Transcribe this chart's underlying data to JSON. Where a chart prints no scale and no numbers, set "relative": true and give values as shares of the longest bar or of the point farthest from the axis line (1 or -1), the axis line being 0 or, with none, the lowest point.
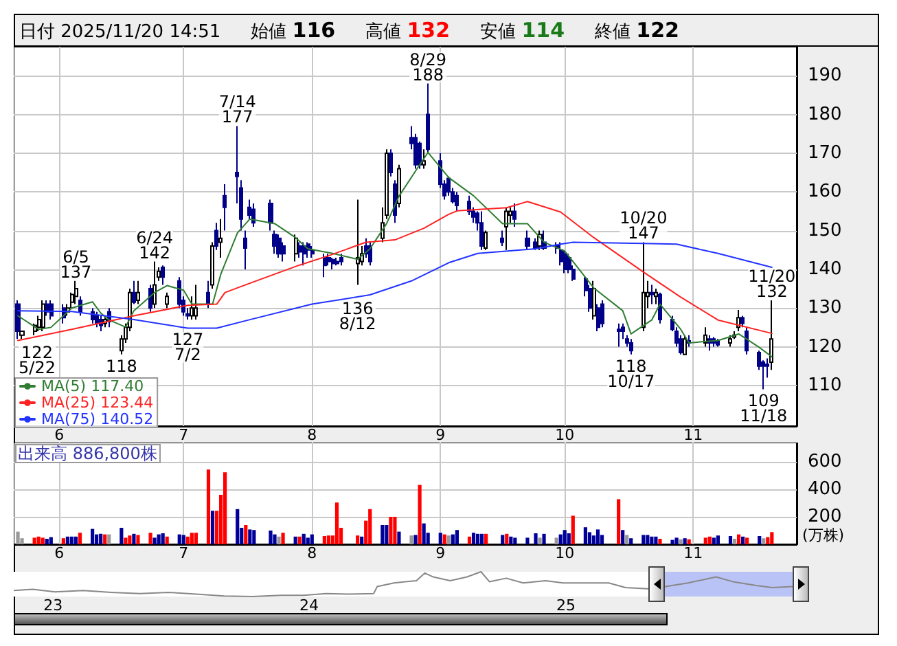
{
  "chart_data": [
    {
      "type": "candlestick",
      "title": "日付 2025/11/20 14:51",
      "colors": [
        "#000088",
        "#ffffff",
        "#ffffff",
        "#ffffff",
        "#ffffff",
        "#000088",
        "#000088",
        "#000088",
        "#ffffff",
        "#ffffff",
        "#ffffff",
        "#000088",
        "#000088",
        "#000088",
        "#000088",
        "#ffffff",
        "#000088",
        "#ffffff",
        "#ffffff",
        "#ffffff",
        "#000088",
        "#ffffff",
        "#000088",
        "#ffffff",
        "#ffffff",
        "#000088",
        "#ffffff",
        "#000088",
        "#000088",
        "#000088",
        "#ffffff",
        "#ffffff",
        "#000088",
        "#ffffff",
        "#000088",
        "#ffffff",
        "#000088",
        "#000088",
        "#000088",
        "#000088",
        "#000088",
        "#000088",
        "#000088",
        "#000088",
        "#000088",
        "#000088",
        "#ffffff",
        "#000088",
        "#000088",
        "#000088",
        "#000088",
        "#000088",
        "#000088",
        "#000088",
        "#000088",
        "#000088",
        "#ffffff",
        "#ffffff",
        "#000088",
        "#000088",
        "#ffffff",
        "#ffffff",
        "#000088",
        "#000088",
        "#ffffff",
        "#000088",
        "#000088",
        "#000088",
        "#ffffff",
        "#000088",
        "#000088",
        "#000088",
        "#000088",
        "#000088",
        "#000088",
        "#000088",
        "#000088",
        "#000088",
        "#000088",
        "#ffffff",
        "#000088",
        "#ffffff",
        "#ffffff",
        "#000088",
        "#000088",
        "#000088",
        "#ffffff",
        "#000088",
        "#000088",
        "#000088",
        "#000088",
        "#000088",
        "#000088",
        "#000088",
        "#000088",
        "#ffffff",
        "#000088",
        "#000088",
        "#000088",
        "#000088",
        "#000088",
        "#000088",
        "#ffffff",
        "#ffffff",
        "#000088",
        "#ffffff",
        "#000088",
        "#000088",
        "#000088",
        "#000088",
        "#ffffff",
        "#000088",
        "#ffffff",
        "#000088",
        "#000088",
        "#000088",
        "#ffffff",
        "#ffffff",
        "#ffffff",
        "#000088",
        "#000088",
        "#000088",
        "#000088",
        "#000088",
        "#ffffff"
      ],
      "annotations": [
        "始値 116",
        "高値 132",
        "安値 114",
        "終値 122",
        {
          "text": "122\n5/22",
          "x": "2025-05-22",
          "y": 122
        },
        {
          "text": "6/5\n137",
          "x": "2025-06-05",
          "y": 137
        },
        {
          "text": "118",
          "x": "2025-06-16",
          "y": 118
        },
        {
          "text": "6/24\n142",
          "x": "2025-06-24",
          "y": 142
        },
        {
          "text": "127\n7/2",
          "x": "2025-07-02",
          "y": 127
        },
        {
          "text": "7/14\n177",
          "x": "2025-07-14",
          "y": 177
        },
        {
          "text": "136\n8/12",
          "x": "2025-08-12",
          "y": 136
        },
        {
          "text": "8/29\n188",
          "x": "2025-08-29",
          "y": 188
        },
        {
          "text": "118\n10/17",
          "x": "2025-10-17",
          "y": 118
        },
        {
          "text": "10/20\n147",
          "x": "2025-10-20",
          "y": 147
        },
        {
          "text": "109\n11/18",
          "x": "2025-11-18",
          "y": 109
        },
        {
          "text": "11/20\n132",
          "x": "2025-11-20",
          "y": 132
        }
      ],
      "x": [
        "2025-05-22",
        "2025-05-23",
        "2025-05-26",
        "2025-05-27",
        "2025-05-28",
        "2025-05-29",
        "2025-05-30",
        "2025-06-02",
        "2025-06-03",
        "2025-06-04",
        "2025-06-05",
        "2025-06-06",
        "2025-06-09",
        "2025-06-10",
        "2025-06-11",
        "2025-06-12",
        "2025-06-13",
        "2025-06-16",
        "2025-06-17",
        "2025-06-18",
        "2025-06-19",
        "2025-06-20",
        "2025-06-23",
        "2025-06-24",
        "2025-06-25",
        "2025-06-26",
        "2025-06-27",
        "2025-06-30",
        "2025-07-01",
        "2025-07-02",
        "2025-07-03",
        "2025-07-04",
        "2025-07-07",
        "2025-07-08",
        "2025-07-09",
        "2025-07-10",
        "2025-07-11",
        "2025-07-14",
        "2025-07-15",
        "2025-07-16",
        "2025-07-17",
        "2025-07-18",
        "2025-07-22",
        "2025-07-23",
        "2025-07-24",
        "2025-07-25",
        "2025-07-28",
        "2025-07-29",
        "2025-07-30",
        "2025-07-31",
        "2025-08-01",
        "2025-08-04",
        "2025-08-05",
        "2025-08-06",
        "2025-08-07",
        "2025-08-08",
        "2025-08-12",
        "2025-08-13",
        "2025-08-14",
        "2025-08-15",
        "2025-08-18",
        "2025-08-19",
        "2025-08-20",
        "2025-08-21",
        "2025-08-22",
        "2025-08-25",
        "2025-08-26",
        "2025-08-27",
        "2025-08-28",
        "2025-08-29",
        "2025-09-01",
        "2025-09-02",
        "2025-09-03",
        "2025-09-04",
        "2025-09-05",
        "2025-09-08",
        "2025-09-09",
        "2025-09-10",
        "2025-09-11",
        "2025-09-12",
        "2025-09-16",
        "2025-09-17",
        "2025-09-18",
        "2025-09-19",
        "2025-09-22",
        "2025-09-24",
        "2025-09-25",
        "2025-09-26",
        "2025-09-29",
        "2025-09-30",
        "2025-10-01",
        "2025-10-02",
        "2025-10-03",
        "2025-10-06",
        "2025-10-07",
        "2025-10-08",
        "2025-10-09",
        "2025-10-10",
        "2025-10-14",
        "2025-10-15",
        "2025-10-16",
        "2025-10-17",
        "2025-10-20",
        "2025-10-21",
        "2025-10-22",
        "2025-10-23",
        "2025-10-24",
        "2025-10-27",
        "2025-10-28",
        "2025-10-29",
        "2025-10-30",
        "2025-10-31",
        "2025-11-04",
        "2025-11-05",
        "2025-11-06",
        "2025-11-07",
        "2025-11-10",
        "2025-11-11",
        "2025-11-12",
        "2025-11-13",
        "2025-11-14",
        "2025-11-17",
        "2025-11-18",
        "2025-11-19",
        "2025-11-20"
      ],
      "ohlc": [
        [
          131,
          132,
          122,
          124
        ],
        [
          123,
          124,
          122,
          124
        ],
        [
          124,
          126,
          123,
          125.5
        ],
        [
          125,
          128,
          124,
          127
        ],
        [
          125,
          132,
          124,
          131
        ],
        [
          131,
          132,
          128,
          129
        ],
        [
          131,
          132,
          127,
          128
        ],
        [
          130,
          131,
          126,
          127.5
        ],
        [
          129,
          131,
          128,
          130
        ],
        [
          131.5,
          134,
          130,
          133.5
        ],
        [
          133,
          137,
          131,
          135
        ],
        [
          132,
          133,
          128,
          129
        ],
        [
          129,
          130,
          126,
          127
        ],
        [
          128,
          129,
          125,
          126
        ],
        [
          127,
          128,
          124,
          125.5
        ],
        [
          126,
          128,
          125,
          127
        ],
        [
          129,
          130,
          125,
          126.5
        ],
        [
          119,
          123,
          118,
          122
        ],
        [
          122,
          126,
          121,
          125
        ],
        [
          125,
          135,
          124,
          134
        ],
        [
          134,
          137,
          131,
          131.5
        ],
        [
          132,
          137,
          131,
          134
        ],
        [
          135,
          136,
          129,
          130
        ],
        [
          131,
          142,
          130,
          136
        ],
        [
          138,
          140.5,
          137,
          139.5
        ],
        [
          140.5,
          141,
          136,
          138
        ],
        [
          131,
          134,
          130,
          133
        ],
        [
          137,
          138,
          130,
          131
        ],
        [
          132,
          133,
          128,
          129
        ],
        [
          128.5,
          130,
          127,
          128
        ],
        [
          128,
          133,
          127,
          130
        ],
        [
          128,
          136,
          127,
          130
        ],
        [
          134,
          137,
          130,
          131
        ],
        [
          136,
          147,
          135,
          146
        ],
        [
          150,
          152,
          145,
          146
        ],
        [
          147,
          153,
          143,
          148
        ],
        [
          159,
          162,
          150,
          156
        ],
        [
          165,
          177,
          157,
          164
        ],
        [
          161,
          163,
          150,
          153
        ],
        [
          148,
          150,
          140,
          145.5
        ],
        [
          156,
          158,
          153,
          154
        ],
        [
          155.5,
          157,
          151,
          152
        ],
        [
          157,
          158,
          150,
          152
        ],
        [
          149,
          150,
          144,
          146
        ],
        [
          148,
          149,
          143,
          144
        ],
        [
          146,
          147,
          142,
          144
        ],
        [
          144,
          149,
          142,
          148
        ],
        [
          146,
          147,
          143,
          144.5
        ],
        [
          146,
          147,
          141,
          144
        ],
        [
          146.5,
          147,
          143,
          145
        ],
        [
          145,
          146,
          143,
          144
        ],
        [
          143,
          144,
          138,
          141
        ],
        [
          143,
          144,
          141,
          142
        ],
        [
          142.5,
          143,
          140,
          141.5
        ],
        [
          142,
          143,
          141,
          141.5
        ],
        [
          143,
          144,
          141,
          142
        ],
        [
          141.5,
          158,
          136,
          143
        ],
        [
          142,
          146,
          141,
          144
        ],
        [
          146,
          148,
          143,
          144
        ],
        [
          146,
          147,
          141,
          142
        ],
        [
          148,
          156,
          147,
          152
        ],
        [
          154,
          171,
          153,
          170
        ],
        [
          170,
          171,
          164,
          165
        ],
        [
          162,
          163,
          152,
          154
        ],
        [
          157,
          167,
          156,
          166
        ],
        [
          174,
          177,
          171,
          172.5
        ],
        [
          174,
          175,
          166,
          167
        ],
        [
          172.5,
          173,
          166,
          167
        ],
        [
          167,
          171,
          166,
          168
        ],
        [
          180,
          188,
          170,
          171
        ],
        [
          168,
          170,
          161,
          162
        ],
        [
          162,
          163,
          158,
          159
        ],
        [
          163.5,
          164,
          159,
          160
        ],
        [
          160,
          161,
          157,
          157.5
        ],
        [
          159,
          160,
          155,
          156.5
        ],
        [
          157.5,
          159,
          154,
          155
        ],
        [
          155,
          156,
          152,
          153.5
        ],
        [
          154.5,
          155,
          150,
          152
        ],
        [
          152,
          155,
          145,
          146
        ],
        [
          145.5,
          150,
          145,
          149.5
        ],
        [
          148,
          150,
          146,
          147
        ],
        [
          151,
          156,
          145,
          155
        ],
        [
          154,
          156,
          152,
          155
        ],
        [
          155,
          157,
          151,
          153
        ],
        [
          148,
          150,
          145,
          146
        ],
        [
          147,
          148,
          145,
          145.5
        ],
        [
          146,
          150,
          145,
          149
        ],
        [
          147,
          150,
          145,
          145.5
        ],
        [
          146,
          147,
          144,
          145.5
        ],
        [
          145,
          147,
          141,
          142
        ],
        [
          144,
          145,
          139,
          140
        ],
        [
          143,
          144,
          139,
          140
        ],
        [
          140,
          141,
          137,
          137.5
        ],
        [
          137.5,
          138,
          133,
          134.5
        ],
        [
          135,
          136,
          129,
          130
        ],
        [
          128,
          137,
          127,
          135
        ],
        [
          130,
          131,
          124,
          125
        ],
        [
          131,
          132,
          125,
          126
        ],
        [
          124.5,
          126,
          120,
          124
        ],
        [
          125,
          126,
          122,
          124
        ],
        [
          122,
          123,
          120,
          121
        ],
        [
          121,
          122,
          118,
          119
        ],
        [
          125,
          147,
          124,
          134
        ],
        [
          133,
          137,
          130,
          134
        ],
        [
          134,
          136,
          131,
          133.5
        ],
        [
          133,
          135,
          131,
          134
        ],
        [
          133.5,
          134,
          126,
          127
        ],
        [
          127,
          128,
          124,
          124.5
        ],
        [
          124,
          125,
          120,
          121
        ],
        [
          122,
          123,
          118,
          118.5
        ],
        [
          118,
          123,
          118,
          122
        ],
        [
          121.5,
          123,
          120,
          121
        ],
        [
          121,
          125,
          120,
          123
        ],
        [
          122,
          123,
          119,
          121
        ],
        [
          122,
          122.5,
          120,
          121
        ],
        [
          121.5,
          122,
          120,
          120.5
        ],
        [
          121,
          123,
          120,
          122
        ],
        [
          122.5,
          124,
          122,
          123
        ],
        [
          125,
          129.5,
          124,
          127.5
        ],
        [
          127.5,
          128,
          125,
          126
        ],
        [
          124,
          125,
          118,
          119
        ],
        [
          118.5,
          119,
          114,
          115
        ],
        [
          116,
          116.5,
          109,
          115
        ],
        [
          115.5,
          117,
          112,
          115
        ],
        [
          116,
          132,
          114,
          122
        ]
      ],
      "series": [
        {
          "type": "line",
          "name": "MA(5) 117.40",
          "color": "#2e7d32",
          "x": [
            "2025-05-22",
            "2025-05-27",
            "2025-05-30",
            "2025-06-04",
            "2025-06-09",
            "2025-06-11",
            "2025-06-13",
            "2025-06-17",
            "2025-06-19",
            "2025-06-24",
            "2025-06-27",
            "2025-07-01",
            "2025-07-03",
            "2025-07-08",
            "2025-07-10",
            "2025-07-14",
            "2025-07-17",
            "2025-07-23",
            "2025-07-28",
            "2025-07-31",
            "2025-08-06",
            "2025-08-12",
            "2025-08-15",
            "2025-08-19",
            "2025-08-22",
            "2025-08-26",
            "2025-08-29",
            "2025-09-03",
            "2025-09-09",
            "2025-09-16",
            "2025-09-22",
            "2025-09-26",
            "2025-10-01",
            "2025-10-08",
            "2025-10-15",
            "2025-10-17",
            "2025-10-22",
            "2025-10-24",
            "2025-10-29",
            "2025-10-31",
            "2025-11-07",
            "2025-11-12",
            "2025-11-17",
            "2025-11-20"
          ],
          "values": [
            128,
            124.5,
            125,
            130,
            131.6,
            128.7,
            126.9,
            125.1,
            129.3,
            134,
            135.8,
            134.6,
            131,
            131,
            138.8,
            149.4,
            153,
            151.8,
            148.2,
            145.3,
            144.1,
            142.6,
            145.3,
            151.8,
            158.9,
            165.4,
            170.2,
            163.7,
            159,
            151.8,
            151.8,
            147,
            144.7,
            135.2,
            129.3,
            123.3,
            126.9,
            131,
            124.5,
            121,
            121.6,
            123.3,
            119.8,
            117.4
          ]
        },
        {
          "type": "line",
          "name": "MA(25) 123.44",
          "color": "#ff2222",
          "x": [
            "2025-05-22",
            "2025-06-04",
            "2025-06-19",
            "2025-07-02",
            "2025-07-09",
            "2025-07-11",
            "2025-07-17",
            "2025-07-29",
            "2025-08-05",
            "2025-08-14",
            "2025-08-21",
            "2025-08-28",
            "2025-09-03",
            "2025-09-05",
            "2025-09-17",
            "2025-09-22",
            "2025-09-30",
            "2025-10-08",
            "2025-10-20",
            "2025-10-29",
            "2025-11-07",
            "2025-11-20"
          ],
          "values": [
            121.6,
            124.5,
            128,
            130.7,
            131,
            134,
            136.4,
            141.1,
            143.5,
            147,
            147.6,
            150.6,
            154.2,
            155.1,
            155.9,
            157.5,
            154.8,
            148.2,
            139.3,
            132.8,
            126.9,
            123.44
          ]
        },
        {
          "type": "line",
          "name": "MA(75) 140.52",
          "color": "#2233ff",
          "x": [
            "2025-05-22",
            "2025-06-04",
            "2025-06-19",
            "2025-07-02",
            "2025-07-09",
            "2025-07-17",
            "2025-08-01",
            "2025-08-15",
            "2025-08-25",
            "2025-09-03",
            "2025-09-10",
            "2025-09-24",
            "2025-09-30",
            "2025-10-03",
            "2025-10-20",
            "2025-10-28",
            "2025-11-07",
            "2025-11-20"
          ],
          "values": [
            129.3,
            129.1,
            127,
            124.8,
            124.8,
            127,
            131,
            133.4,
            137,
            141.7,
            144.1,
            145.3,
            146.5,
            147,
            146.7,
            146.5,
            144.1,
            140.52
          ]
        }
      ],
      "xlim": [
        "2025-05-21",
        "2025-11-26"
      ],
      "xticks": [
        {
          "value": "2025-06-01",
          "label": "6"
        },
        {
          "value": "2025-07-01",
          "label": "7"
        },
        {
          "value": "2025-08-01",
          "label": "8"
        },
        {
          "value": "2025-09-01",
          "label": "9"
        },
        {
          "value": "2025-10-01",
          "label": "10"
        },
        {
          "value": "2025-11-01",
          "label": "11"
        }
      ],
      "ylim": [
        99.5,
        197.5
      ],
      "yticks": [
        110,
        120,
        130,
        140,
        150,
        160,
        170,
        180,
        190
      ],
      "grid": true,
      "legend": "bottom left",
      "marker": "none",
      "line_style": "solid"
    },
    {
      "type": "bar",
      "title": "出来高 886,800株",
      "ylabel": "(万株)",
      "x": [
        "2025-05-22",
        "2025-05-23",
        "2025-05-26",
        "2025-05-27",
        "2025-05-28",
        "2025-05-29",
        "2025-05-30",
        "2025-06-02",
        "2025-06-03",
        "2025-06-04",
        "2025-06-05",
        "2025-06-06",
        "2025-06-09",
        "2025-06-10",
        "2025-06-11",
        "2025-06-12",
        "2025-06-13",
        "2025-06-16",
        "2025-06-17",
        "2025-06-18",
        "2025-06-19",
        "2025-06-20",
        "2025-06-23",
        "2025-06-24",
        "2025-06-25",
        "2025-06-26",
        "2025-06-27",
        "2025-06-30",
        "2025-07-01",
        "2025-07-02",
        "2025-07-03",
        "2025-07-04",
        "2025-07-07",
        "2025-07-08",
        "2025-07-09",
        "2025-07-10",
        "2025-07-11",
        "2025-07-14",
        "2025-07-15",
        "2025-07-16",
        "2025-07-17",
        "2025-07-18",
        "2025-07-22",
        "2025-07-23",
        "2025-07-24",
        "2025-07-25",
        "2025-07-28",
        "2025-07-29",
        "2025-07-30",
        "2025-07-31",
        "2025-08-01",
        "2025-08-04",
        "2025-08-05",
        "2025-08-06",
        "2025-08-07",
        "2025-08-08",
        "2025-08-12",
        "2025-08-13",
        "2025-08-14",
        "2025-08-15",
        "2025-08-18",
        "2025-08-19",
        "2025-08-20",
        "2025-08-21",
        "2025-08-22",
        "2025-08-25",
        "2025-08-26",
        "2025-08-27",
        "2025-08-28",
        "2025-08-29",
        "2025-09-01",
        "2025-09-02",
        "2025-09-03",
        "2025-09-04",
        "2025-09-05",
        "2025-09-08",
        "2025-09-09",
        "2025-09-10",
        "2025-09-11",
        "2025-09-12",
        "2025-09-16",
        "2025-09-17",
        "2025-09-18",
        "2025-09-19",
        "2025-09-22",
        "2025-09-24",
        "2025-09-25",
        "2025-09-26",
        "2025-09-29",
        "2025-09-30",
        "2025-10-01",
        "2025-10-02",
        "2025-10-03",
        "2025-10-06",
        "2025-10-07",
        "2025-10-08",
        "2025-10-09",
        "2025-10-10",
        "2025-10-14",
        "2025-10-15",
        "2025-10-16",
        "2025-10-17",
        "2025-10-20",
        "2025-10-21",
        "2025-10-22",
        "2025-10-23",
        "2025-10-24",
        "2025-10-27",
        "2025-10-28",
        "2025-10-29",
        "2025-10-30",
        "2025-10-31",
        "2025-11-04",
        "2025-11-05",
        "2025-11-06",
        "2025-11-07",
        "2025-11-10",
        "2025-11-11",
        "2025-11-12",
        "2025-11-13",
        "2025-11-14",
        "2025-11-17",
        "2025-11-18",
        "2025-11-19",
        "2025-11-20"
      ],
      "values": [
        92,
        44,
        48,
        56,
        48,
        40,
        52,
        44,
        56,
        56,
        56,
        84,
        112,
        72,
        76,
        72,
        72,
        120,
        48,
        64,
        76,
        68,
        84,
        48,
        72,
        80,
        56,
        72,
        68,
        56,
        84,
        84,
        544,
        244,
        244,
        360,
        524,
        256,
        120,
        140,
        108,
        104,
        100,
        72,
        56,
        84,
        56,
        56,
        76,
        48,
        72,
        60,
        64,
        64,
        304,
        120,
        64,
        56,
        172,
        256,
        140,
        140,
        200,
        200,
        92,
        64,
        68,
        432,
        152,
        84,
        84,
        72,
        64,
        72,
        104,
        56,
        84,
        76,
        76,
        76,
        68,
        76,
        56,
        48,
        48,
        80,
        48,
        76,
        48,
        72,
        104,
        80,
        208,
        124,
        88,
        64,
        108,
        68,
        328,
        104,
        68,
        44,
        68,
        68,
        56,
        56,
        40,
        32,
        48,
        36,
        44,
        36,
        48,
        56,
        48,
        64,
        60,
        40,
        72,
        56,
        48,
        60,
        44,
        52,
        88.68
      ],
      "colors": [
        "#999999",
        "#999999",
        "#ff0000",
        "#ff0000",
        "#ff0000",
        "#000099",
        "#000099",
        "#ff0000",
        "#000099",
        "#000099",
        "#000099",
        "#ff0000",
        "#000099",
        "#000099",
        "#000099",
        "#ff0000",
        "#999999",
        "#000099",
        "#ff0000",
        "#ff0000",
        "#000099",
        "#ff0000",
        "#ff0000",
        "#000099",
        "#000099",
        "#000099",
        "#ff0000",
        "#000099",
        "#000099",
        "#ff0000",
        "#ff0000",
        "#ff0000",
        "#ff0000",
        "#000099",
        "#ff0000",
        "#ff0000",
        "#ff0000",
        "#000099",
        "#000099",
        "#ff0000",
        "#000099",
        "#000099",
        "#000099",
        "#000099",
        "#999999",
        "#ff0000",
        "#000099",
        "#ff0000",
        "#000099",
        "#000099",
        "#000099",
        "#ff0000",
        "#ff0000",
        "#ff0000",
        "#ff0000",
        "#ff0000",
        "#ff0000",
        "#000099",
        "#ff0000",
        "#ff0000",
        "#000099",
        "#000099",
        "#ff0000",
        "#ff0000",
        "#000099",
        "#999999",
        "#000099",
        "#ff0000",
        "#000099",
        "#000099",
        "#000099",
        "#ff0000",
        "#999999",
        "#000099",
        "#000099",
        "#ff0000",
        "#000099",
        "#000099",
        "#000099",
        "#ff0000",
        "#000099",
        "#ff0000",
        "#000099",
        "#000099",
        "#000099",
        "#000099",
        "#999999",
        "#000099",
        "#999999",
        "#000099",
        "#000099",
        "#000099",
        "#ff0000",
        "#000099",
        "#000099",
        "#000099",
        "#000099",
        "#000099",
        "#ff0000",
        "#000099",
        "#999999",
        "#000099",
        "#000099",
        "#000099",
        "#000099",
        "#000099",
        "#ff0000",
        "#000099",
        "#000099",
        "#999999",
        "#000099",
        "#ff0000",
        "#ff0000",
        "#ff0000",
        "#000099",
        "#000099",
        "#000099",
        "#999999",
        "#ff0000",
        "#000099",
        "#ff0000",
        "#000099",
        "#999999",
        "#ff0000",
        "#ff0000"
      ],
      "xlim": [
        "2025-05-21",
        "2025-11-26"
      ],
      "xticks": [
        {
          "value": "2025-06-01",
          "label": "6"
        },
        {
          "value": "2025-07-01",
          "label": "7"
        },
        {
          "value": "2025-08-01",
          "label": "8"
        },
        {
          "value": "2025-09-01",
          "label": "9"
        },
        {
          "value": "2025-10-01",
          "label": "10"
        },
        {
          "value": "2025-11-01",
          "label": "11"
        }
      ],
      "ylim": [
        0,
        740
      ],
      "yticks": [
        200,
        400,
        600
      ],
      "grid": true
    },
    {
      "type": "line",
      "relative": true,
      "color": "#888888",
      "tick_labels": "x",
      "x": [
        "2022-11-06",
        "2022-12-03",
        "2023-01-04",
        "2023-02-13",
        "2023-03-25",
        "2023-05-05",
        "2023-06-14",
        "2023-07-24",
        "2023-09-02",
        "2023-10-12",
        "2023-11-22",
        "2023-12-24",
        "2024-01-25",
        "2024-02-26",
        "2024-04-02",
        "2024-04-07",
        "2024-05-01",
        "2024-05-17",
        "2024-06-02",
        "2024-06-14",
        "2024-06-26",
        "2024-07-20",
        "2024-08-13",
        "2024-09-02",
        "2024-09-14",
        "2024-10-08",
        "2024-11-01",
        "2024-12-03",
        "2024-12-28",
        "2025-01-30",
        "2025-03-03",
        "2025-03-27",
        "2025-04-28",
        "2025-05-23",
        "2025-06-24",
        "2025-08-03",
        "2025-08-27",
        "2025-09-28",
        "2025-10-22",
        "2025-11-20"
      ],
      "values": [
        0.24,
        0.29,
        0.19,
        0.24,
        0.17,
        0.12,
        0.17,
        0.1,
        0.02,
        0,
        0.05,
        0.05,
        0.12,
        0.1,
        0.12,
        0.4,
        0.55,
        0.6,
        0.64,
        0.95,
        0.79,
        0.64,
        0.79,
        1,
        0.6,
        0.74,
        0.55,
        0.64,
        0.55,
        0.55,
        0.55,
        0.36,
        0.31,
        0.4,
        0.55,
        0.79,
        0.6,
        0.45,
        0.36,
        0.4
      ],
      "bands": [
        {
          "axis": "x",
          "from": "2025-05-22",
          "to": "2025-11-20",
          "color": "#b9c3f5"
        }
      ],
      "xlim": [
        "2022-11-06",
        "2025-11-26"
      ],
      "xticks": [
        {
          "value": "2023-01-01",
          "label": "23"
        },
        {
          "value": "2024-01-01",
          "label": "24"
        },
        {
          "value": "2025-01-01",
          "label": "25"
        }
      ]
    }
  ]
}
